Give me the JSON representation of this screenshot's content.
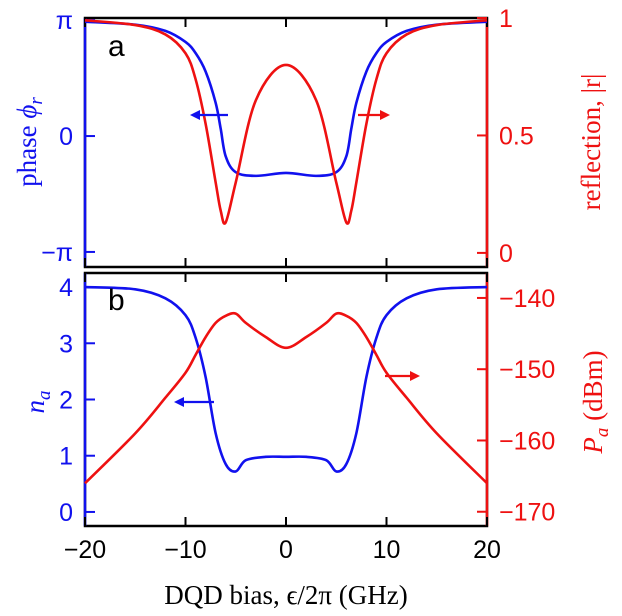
{
  "chart_data": [
    {
      "type": "line",
      "panel": "a",
      "x": [
        -20,
        -15,
        -12,
        -10,
        -9,
        -8,
        -7,
        -6.5,
        -6,
        -5,
        -3,
        0,
        3,
        5,
        6,
        6.5,
        7,
        8,
        9,
        10,
        12,
        15,
        20
      ],
      "xlim": [
        -20,
        20
      ],
      "x_ticks": [
        "-20",
        "-10",
        "0",
        "10",
        "20"
      ],
      "series": [
        {
          "name": "phase",
          "axis": "left",
          "color": "#1111ee",
          "values": [
            3.1,
            3.02,
            2.85,
            2.55,
            2.25,
            1.75,
            0.9,
            0.2,
            -0.55,
            -0.98,
            -1.08,
            -1.0,
            -1.08,
            -0.98,
            -0.55,
            0.2,
            0.9,
            1.75,
            2.25,
            2.55,
            2.85,
            3.02,
            3.1
          ],
          "ylabel": "phase ϕr",
          "ylim": [
            -3.55,
            3.2
          ],
          "y_ticks": [
            "−π",
            "0",
            "π"
          ],
          "arrow_direction": "left"
        },
        {
          "name": "reflection",
          "axis": "right",
          "color": "#ee1111",
          "values": [
            0.99,
            0.97,
            0.93,
            0.85,
            0.74,
            0.55,
            0.3,
            0.18,
            0.13,
            0.3,
            0.65,
            0.8,
            0.65,
            0.3,
            0.13,
            0.18,
            0.3,
            0.55,
            0.74,
            0.85,
            0.93,
            0.97,
            0.99
          ],
          "ylabel": "reflection, |r|",
          "ylim": [
            -0.06,
            1.0
          ],
          "y_ticks": [
            "0",
            "0.5",
            "1"
          ],
          "arrow_direction": "right"
        }
      ]
    },
    {
      "type": "line",
      "panel": "b",
      "x": [
        -20,
        -15,
        -12,
        -10,
        -9,
        -8,
        -7,
        -6,
        -5,
        -4,
        -2,
        0,
        2,
        4,
        5,
        6,
        7,
        8,
        9,
        10,
        12,
        15,
        20
      ],
      "xlim": [
        -20,
        20
      ],
      "x_ticks": [
        "-20",
        "-10",
        "0",
        "10",
        "20"
      ],
      "xlabel": "DQD bias, ϵ/2π (GHz)",
      "series": [
        {
          "name": "n_a",
          "axis": "left",
          "color": "#1111ee",
          "values": [
            4.0,
            3.96,
            3.8,
            3.5,
            3.1,
            2.4,
            1.4,
            0.85,
            0.72,
            0.92,
            0.98,
            0.98,
            0.98,
            0.92,
            0.72,
            0.85,
            1.4,
            2.4,
            3.1,
            3.5,
            3.8,
            3.96,
            4.0
          ],
          "ylabel": "na",
          "ylim": [
            -0.25,
            4.25
          ],
          "y_ticks": [
            "0",
            "1",
            "2",
            "3",
            "4"
          ],
          "arrow_direction": "left"
        },
        {
          "name": "P_a",
          "axis": "right",
          "color": "#ee1111",
          "values": [
            -166.0,
            -159.0,
            -154.0,
            -150.5,
            -148.0,
            -145.5,
            -143.5,
            -142.5,
            -142.2,
            -143.5,
            -145.5,
            -147.0,
            -145.5,
            -143.5,
            -142.2,
            -142.5,
            -143.5,
            -145.5,
            -148.0,
            -150.5,
            -154.0,
            -159.0,
            -166.0
          ],
          "ylabel": "Pa (dBm)",
          "ylim": [
            -172.0,
            -136.5
          ],
          "y_ticks": [
            "-140",
            "-150",
            "-160",
            "-170"
          ],
          "arrow_direction": "right"
        }
      ]
    }
  ],
  "labels": {
    "panel_a": "a",
    "panel_b": "b",
    "ylabel_a_left_text": "phase ",
    "ylabel_a_left_sym": "ϕ",
    "ylabel_a_left_sub": "r",
    "ylabel_a_right": "reflection, |r|",
    "ylabel_b_left_sym": "n",
    "ylabel_b_left_sub": "a",
    "ylabel_b_right_sym": "P",
    "ylabel_b_right_sub": "a",
    "ylabel_b_right_rest": " (dBm)",
    "xlabel": "DQD bias, ϵ/2π (GHz)"
  }
}
